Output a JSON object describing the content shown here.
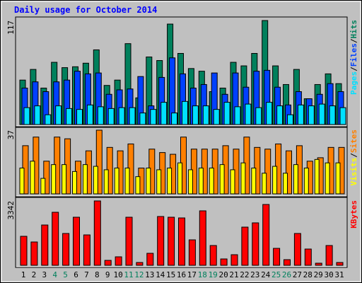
{
  "chart_data": [
    {
      "type": "bar",
      "title": "Daily usage for October 2014",
      "ylim": [
        0,
        117
      ],
      "yticks": [
        117
      ],
      "legend_separator": "/",
      "series": [
        {
          "name": "Hits",
          "color": "#00805c",
          "values": [
            50,
            62,
            41,
            70,
            64,
            65,
            69,
            84,
            44,
            50,
            91,
            30,
            76,
            72,
            113,
            80,
            63,
            60,
            37,
            41,
            70,
            66,
            80,
            117,
            66,
            45,
            62,
            29,
            45,
            57,
            46
          ]
        },
        {
          "name": "Files",
          "color": "#0040ff",
          "values": [
            41,
            48,
            37,
            48,
            50,
            60,
            57,
            58,
            34,
            39,
            40,
            54,
            21,
            53,
            75,
            57,
            41,
            45,
            58,
            34,
            58,
            42,
            60,
            61,
            42,
            22,
            37,
            29,
            34,
            46,
            37
          ]
        },
        {
          "name": "Pages",
          "color": "#00e0ff",
          "values": [
            19,
            21,
            11,
            21,
            18,
            17,
            22,
            20,
            18,
            19,
            19,
            13,
            17,
            25,
            13,
            26,
            21,
            21,
            17,
            25,
            20,
            23,
            19,
            25,
            21,
            11,
            22,
            21,
            23,
            21,
            19
          ]
        }
      ]
    },
    {
      "type": "bar",
      "ylim": [
        0,
        37
      ],
      "yticks": [
        37
      ],
      "legend_separator": "/",
      "series": [
        {
          "name": "Sites",
          "color": "#ff8000",
          "values": [
            28,
            33,
            19,
            33,
            32,
            19,
            25,
            37,
            27,
            25,
            29,
            15,
            26,
            24,
            23,
            33,
            26,
            26,
            26,
            28,
            26,
            33,
            27,
            26,
            29,
            25,
            28,
            19,
            21,
            27,
            27
          ]
        },
        {
          "name": "Visits",
          "color": "#ffff00",
          "values": [
            15,
            19,
            9,
            17,
            17,
            13,
            17,
            16,
            14,
            15,
            15,
            10,
            15,
            14,
            15,
            18,
            14,
            15,
            15,
            17,
            14,
            18,
            15,
            12,
            16,
            12,
            17,
            15,
            20,
            18,
            18
          ]
        }
      ]
    },
    {
      "type": "bar",
      "ylim": [
        0,
        3342
      ],
      "yticks": [
        3342
      ],
      "categories": [
        "1",
        "2",
        "3",
        "4",
        "5",
        "6",
        "7",
        "8",
        "9",
        "10",
        "11",
        "12",
        "13",
        "14",
        "15",
        "16",
        "17",
        "18",
        "19",
        "20",
        "21",
        "22",
        "23",
        "24",
        "25",
        "26",
        "27",
        "28",
        "29",
        "30",
        "31"
      ],
      "category_label_colors": [
        "#000000",
        "#000000",
        "#000000",
        "#00805c",
        "#00805c",
        "#000000",
        "#000000",
        "#000000",
        "#000000",
        "#000000",
        "#00805c",
        "#00805c",
        "#000000",
        "#000000",
        "#000000",
        "#000000",
        "#000000",
        "#00805c",
        "#00805c",
        "#000000",
        "#000000",
        "#000000",
        "#000000",
        "#000000",
        "#00805c",
        "#00805c",
        "#000000",
        "#000000",
        "#000000",
        "#000000",
        "#000000"
      ],
      "series": [
        {
          "name": "KBytes",
          "color": "#ff0000",
          "values": [
            1506,
            1212,
            2093,
            2754,
            1653,
            2497,
            1579,
            3342,
            257,
            441,
            2497,
            147,
            624,
            2534,
            2497,
            2460,
            1322,
            2828,
            1028,
            331,
            551,
            1983,
            2204,
            3158,
            881,
            294,
            1653,
            845,
            110,
            1028,
            147
          ]
        }
      ]
    }
  ]
}
